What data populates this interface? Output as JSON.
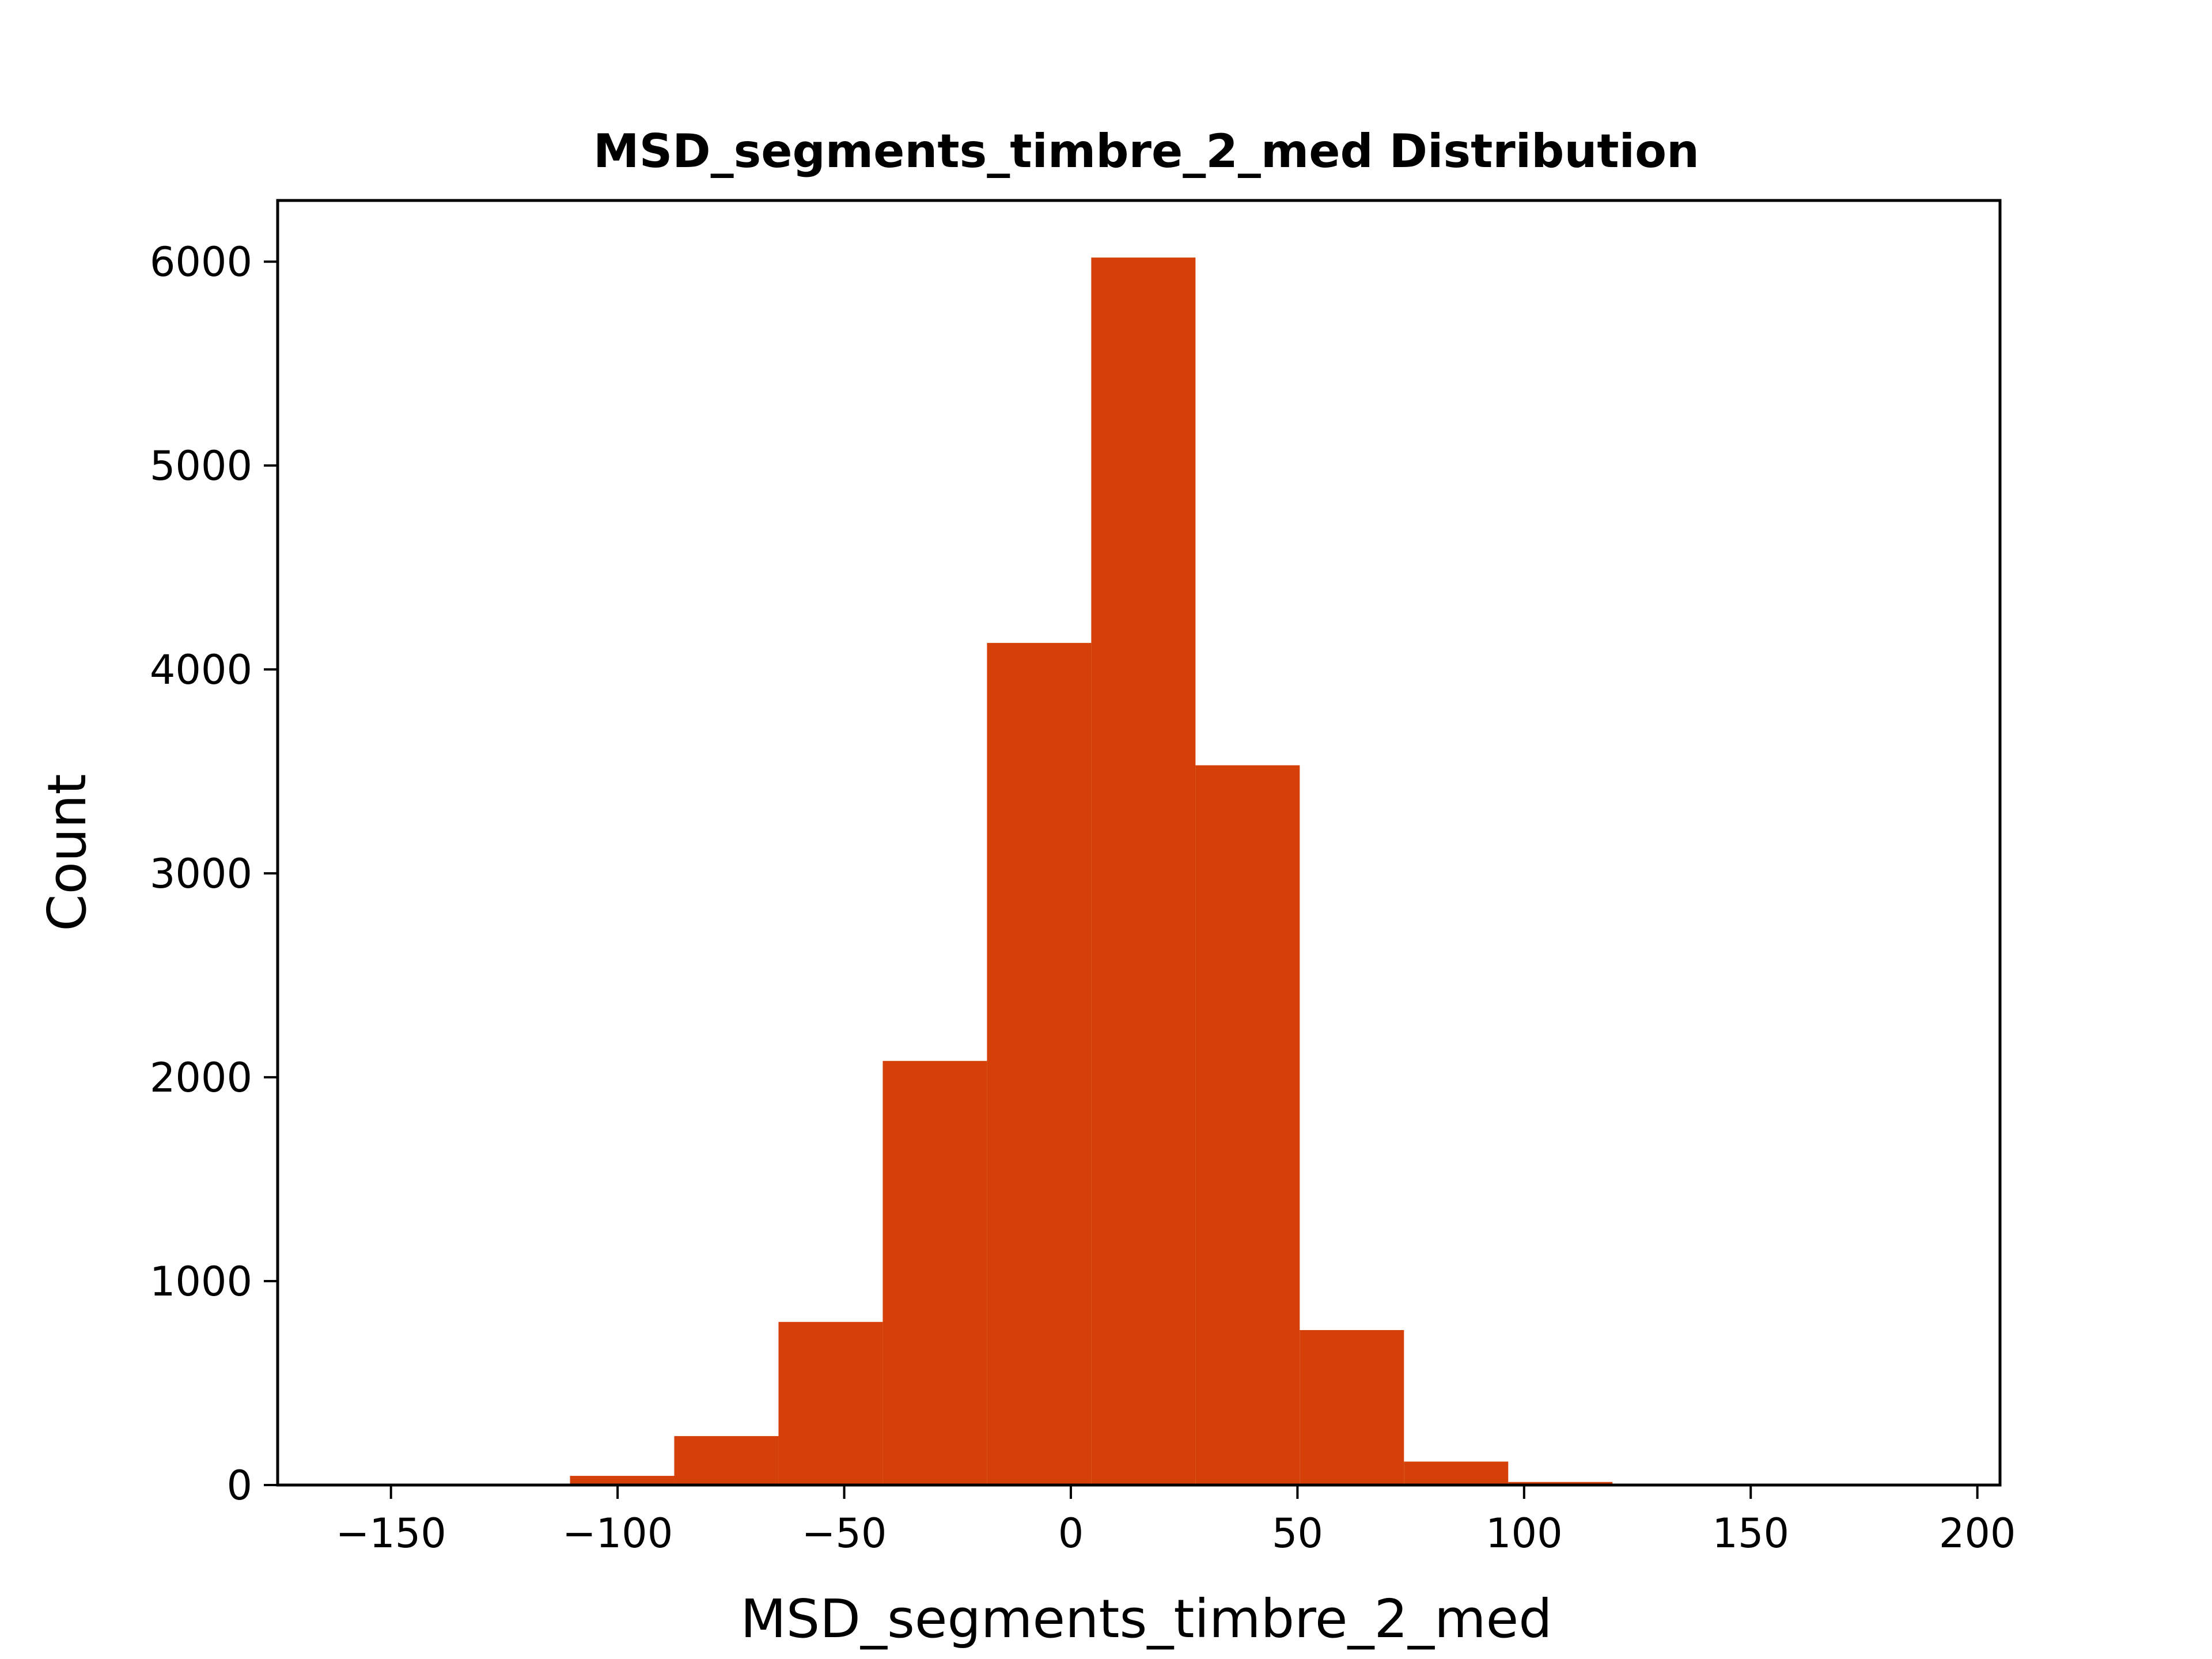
{
  "chart_data": {
    "type": "bar",
    "title": "MSD_segments_timbre_2_med Distribution",
    "xlabel": "MSD_segments_timbre_2_med",
    "ylabel": "Count",
    "xlim": [
      -175,
      205
    ],
    "ylim": [
      0,
      6300
    ],
    "xticks": [
      -150,
      -100,
      -50,
      0,
      50,
      100,
      150,
      200
    ],
    "xtick_labels": [
      "−150",
      "−100",
      "−50",
      "0",
      "50",
      "100",
      "150",
      "200"
    ],
    "yticks": [
      0,
      1000,
      2000,
      3000,
      4000,
      5000,
      6000
    ],
    "ytick_labels": [
      "0",
      "1000",
      "2000",
      "3000",
      "4000",
      "5000",
      "6000"
    ],
    "grid": false,
    "bar_color": "#d54009",
    "bins": [
      {
        "x0": -156.5,
        "x1": -133.5,
        "count": 0
      },
      {
        "x0": -133.5,
        "x1": -110.5,
        "count": 5
      },
      {
        "x0": -110.5,
        "x1": -87.5,
        "count": 45
      },
      {
        "x0": -87.5,
        "x1": -64.5,
        "count": 240
      },
      {
        "x0": -64.5,
        "x1": -41.5,
        "count": 800
      },
      {
        "x0": -41.5,
        "x1": -18.5,
        "count": 2080
      },
      {
        "x0": -18.5,
        "x1": 4.5,
        "count": 4130
      },
      {
        "x0": 4.5,
        "x1": 27.5,
        "count": 6020
      },
      {
        "x0": 27.5,
        "x1": 50.5,
        "count": 3530
      },
      {
        "x0": 50.5,
        "x1": 73.5,
        "count": 760
      },
      {
        "x0": 73.5,
        "x1": 96.5,
        "count": 115
      },
      {
        "x0": 96.5,
        "x1": 119.5,
        "count": 15
      },
      {
        "x0": 119.5,
        "x1": 142.5,
        "count": 3
      },
      {
        "x0": 142.5,
        "x1": 165.5,
        "count": 1
      },
      {
        "x0": 165.5,
        "x1": 188.5,
        "count": 1
      }
    ]
  }
}
